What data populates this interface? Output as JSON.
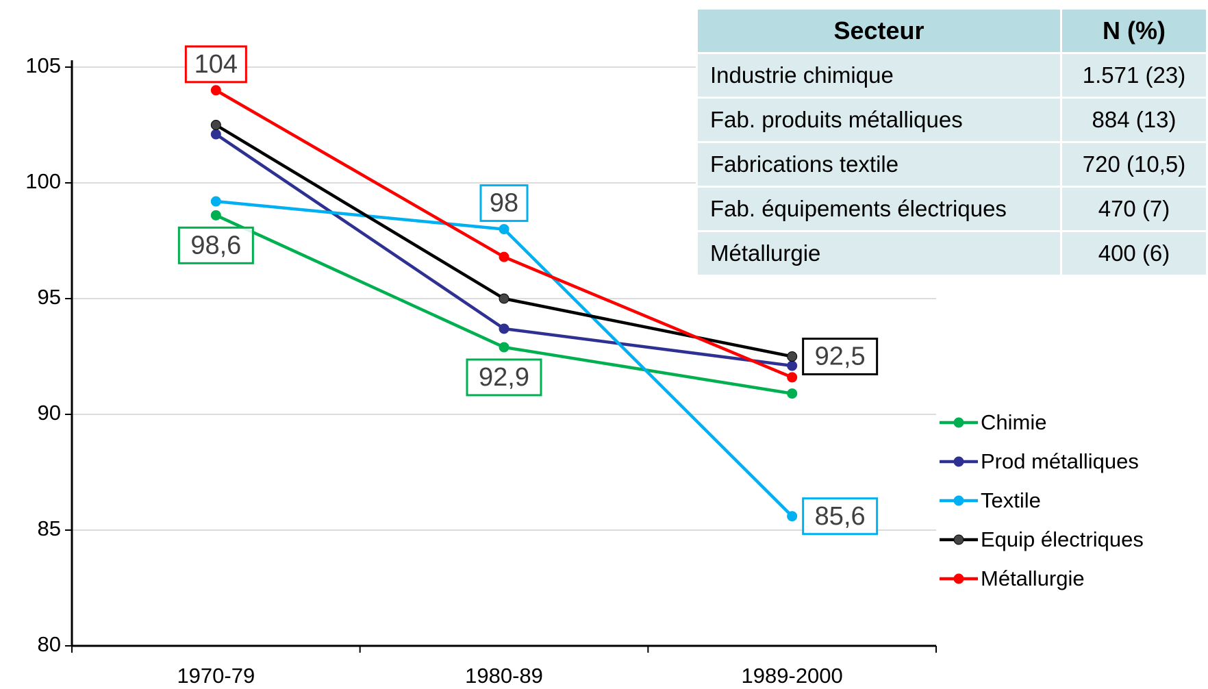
{
  "chart_data": {
    "type": "line",
    "categories": [
      "1970-79",
      "1980-89",
      "1989-2000"
    ],
    "ylim": [
      80,
      105
    ],
    "yticks": [
      80,
      85,
      90,
      95,
      100,
      105
    ],
    "grid": true,
    "legend": "right",
    "series": [
      {
        "name": "Chimie",
        "color": "#00b050",
        "values": [
          98.6,
          92.9,
          90.9
        ],
        "value_labels": [
          "98,6",
          "92,9",
          null
        ]
      },
      {
        "name": "Prod métalliques",
        "color": "#2e3192",
        "values": [
          102.1,
          93.7,
          92.1
        ]
      },
      {
        "name": "Textile",
        "color": "#00b0f0",
        "values": [
          99.2,
          98,
          85.6
        ],
        "value_labels": [
          null,
          "98",
          "85,6"
        ]
      },
      {
        "name": "Equip électriques",
        "color": "#000000",
        "values": [
          102.5,
          95,
          92.5
        ],
        "value_labels": [
          null,
          null,
          "92,5"
        ]
      },
      {
        "name": "Métallurgie",
        "color": "#ff0000",
        "values": [
          104,
          96.8,
          91.6
        ],
        "value_labels": [
          "104",
          null,
          null
        ]
      }
    ]
  },
  "table": {
    "header": [
      "Secteur",
      "N (%)"
    ],
    "rows": [
      [
        "Industrie chimique",
        "1.571 (23)"
      ],
      [
        "Fab. produits métalliques",
        "884 (13)"
      ],
      [
        "Fabrications textile",
        "720 (10,5)"
      ],
      [
        "Fab. équipements électriques",
        "470 (7)"
      ],
      [
        "Métallurgie",
        "400 (6)"
      ]
    ]
  }
}
